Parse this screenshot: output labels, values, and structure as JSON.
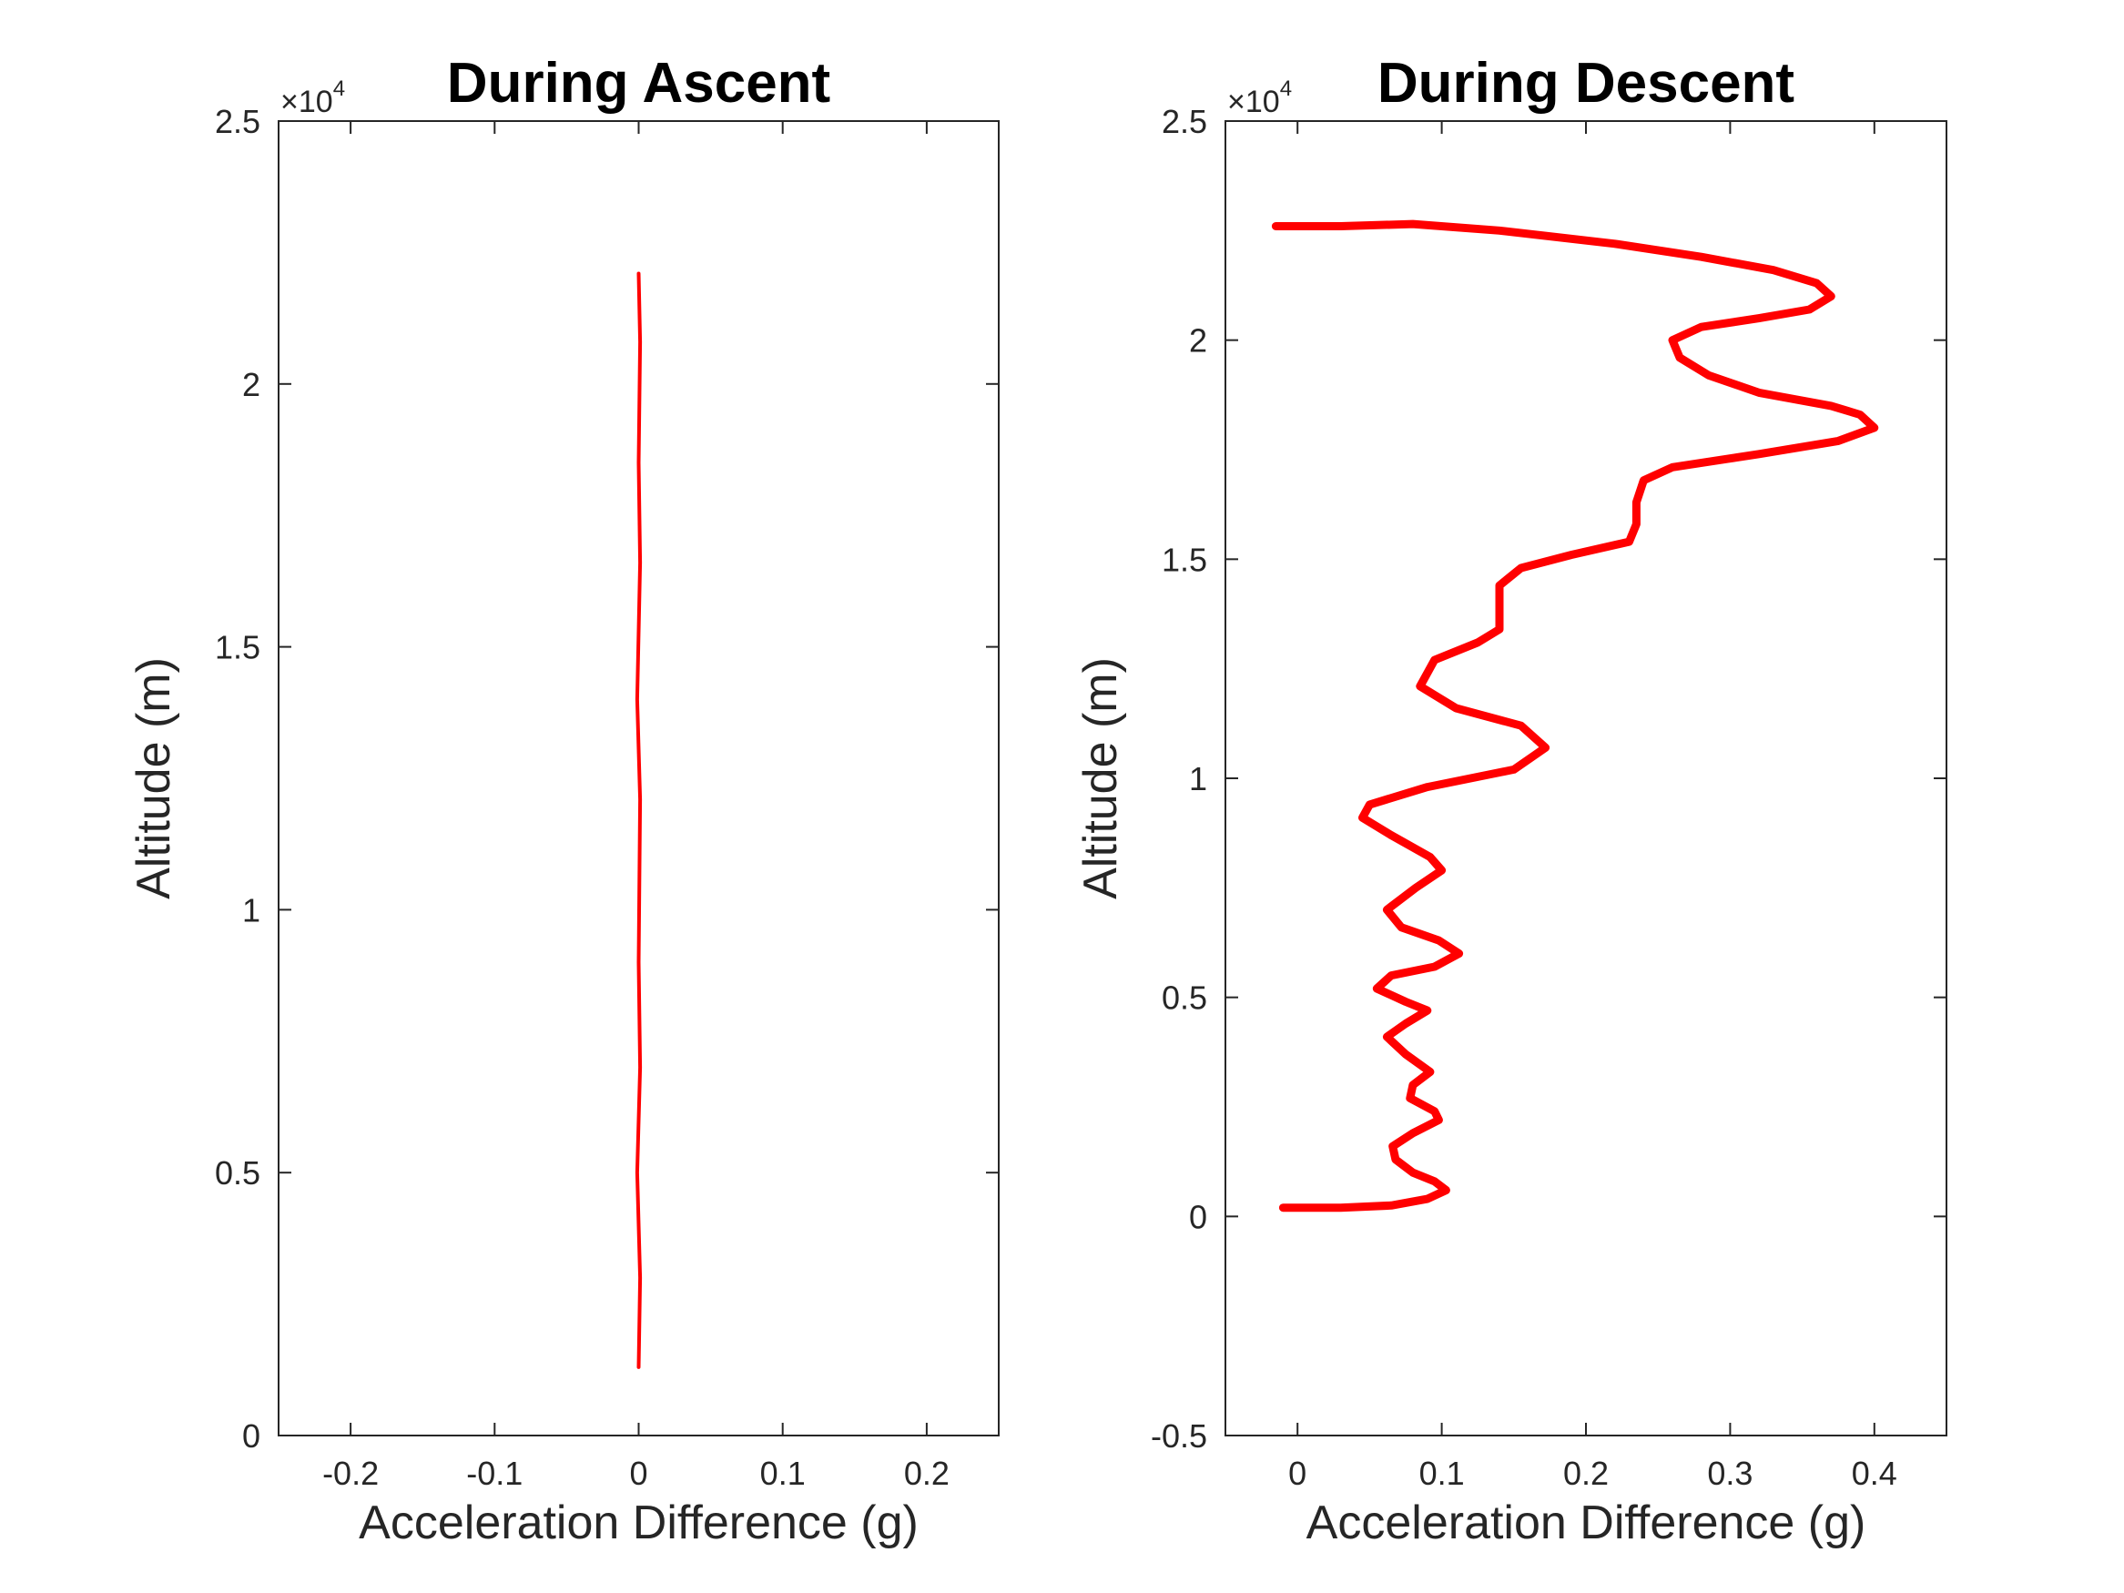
{
  "figure": {
    "background": "#ffffff",
    "axis_color": "#262626",
    "line_color": "#ff0000"
  },
  "chart_data": [
    {
      "type": "line",
      "title": "During Ascent",
      "xlabel": "Acceleration Difference (g)",
      "ylabel": "Altitude (m)",
      "xlim": [
        -0.25,
        0.25
      ],
      "ylim": [
        0,
        25000
      ],
      "xticks": [
        -0.2,
        -0.1,
        0,
        0.1,
        0.2
      ],
      "xtick_labels": [
        "-0.2",
        "-0.1",
        "0",
        "0.1",
        "0.2"
      ],
      "yticks": [
        0,
        5000,
        10000,
        15000,
        20000,
        25000
      ],
      "ytick_labels": [
        "0",
        "0.5",
        "1",
        "1.5",
        "2",
        "2.5"
      ],
      "y_exponent_label": {
        "base": "×10",
        "power": "4"
      },
      "grid": false,
      "series": [
        {
          "color": "#ff0000",
          "points": [
            [
              0.0,
              1300
            ],
            [
              0.001,
              3000
            ],
            [
              -0.001,
              5000
            ],
            [
              0.001,
              7000
            ],
            [
              0.0,
              9000
            ],
            [
              0.001,
              12100
            ],
            [
              -0.001,
              14000
            ],
            [
              0.001,
              16600
            ],
            [
              0.0,
              18500
            ],
            [
              0.001,
              20800
            ],
            [
              0.0,
              22100
            ]
          ]
        }
      ]
    },
    {
      "type": "line",
      "title": "During Descent",
      "xlabel": "Acceleration Difference (g)",
      "ylabel": "Altitude (m)",
      "xlim": [
        -0.05,
        0.45
      ],
      "ylim": [
        -5000,
        25000
      ],
      "xticks": [
        0,
        0.1,
        0.2,
        0.3,
        0.4
      ],
      "xtick_labels": [
        "0",
        "0.1",
        "0.2",
        "0.3",
        "0.4"
      ],
      "yticks": [
        -5000,
        0,
        5000,
        10000,
        15000,
        20000,
        25000
      ],
      "ytick_labels": [
        "-0.5",
        "0",
        "0.5",
        "1",
        "1.5",
        "2",
        "2.5"
      ],
      "y_exponent_label": {
        "base": "×10",
        "power": "4"
      },
      "grid": false,
      "series": [
        {
          "color": "#ff0000",
          "points": [
            [
              -0.015,
              22600
            ],
            [
              0.03,
              22600
            ],
            [
              0.08,
              22650
            ],
            [
              0.14,
              22500
            ],
            [
              0.22,
              22200
            ],
            [
              0.28,
              21900
            ],
            [
              0.33,
              21600
            ],
            [
              0.36,
              21300
            ],
            [
              0.37,
              21000
            ],
            [
              0.355,
              20700
            ],
            [
              0.32,
              20500
            ],
            [
              0.28,
              20300
            ],
            [
              0.26,
              20000
            ],
            [
              0.265,
              19600
            ],
            [
              0.285,
              19200
            ],
            [
              0.32,
              18800
            ],
            [
              0.37,
              18500
            ],
            [
              0.39,
              18300
            ],
            [
              0.4,
              18000
            ],
            [
              0.375,
              17700
            ],
            [
              0.32,
              17400
            ],
            [
              0.26,
              17100
            ],
            [
              0.24,
              16800
            ],
            [
              0.235,
              16300
            ],
            [
              0.235,
              15800
            ],
            [
              0.23,
              15400
            ],
            [
              0.19,
              15100
            ],
            [
              0.155,
              14800
            ],
            [
              0.14,
              14400
            ],
            [
              0.14,
              13900
            ],
            [
              0.14,
              13400
            ],
            [
              0.125,
              13100
            ],
            [
              0.095,
              12700
            ],
            [
              0.085,
              12100
            ],
            [
              0.11,
              11600
            ],
            [
              0.155,
              11200
            ],
            [
              0.172,
              10700
            ],
            [
              0.15,
              10200
            ],
            [
              0.09,
              9800
            ],
            [
              0.05,
              9400
            ],
            [
              0.045,
              9100
            ],
            [
              0.065,
              8700
            ],
            [
              0.092,
              8200
            ],
            [
              0.1,
              7900
            ],
            [
              0.082,
              7500
            ],
            [
              0.062,
              7000
            ],
            [
              0.072,
              6600
            ],
            [
              0.098,
              6300
            ],
            [
              0.112,
              6000
            ],
            [
              0.095,
              5700
            ],
            [
              0.065,
              5500
            ],
            [
              0.055,
              5200
            ],
            [
              0.075,
              4900
            ],
            [
              0.09,
              4700
            ],
            [
              0.075,
              4400
            ],
            [
              0.062,
              4100
            ],
            [
              0.075,
              3700
            ],
            [
              0.092,
              3300
            ],
            [
              0.08,
              3000
            ],
            [
              0.078,
              2700
            ],
            [
              0.095,
              2400
            ],
            [
              0.098,
              2200
            ],
            [
              0.08,
              1900
            ],
            [
              0.066,
              1600
            ],
            [
              0.068,
              1300
            ],
            [
              0.08,
              1000
            ],
            [
              0.095,
              800
            ],
            [
              0.103,
              600
            ],
            [
              0.09,
              400
            ],
            [
              0.065,
              250
            ],
            [
              0.03,
              200
            ],
            [
              0.0,
              200
            ],
            [
              -0.01,
              200
            ]
          ]
        }
      ]
    }
  ]
}
